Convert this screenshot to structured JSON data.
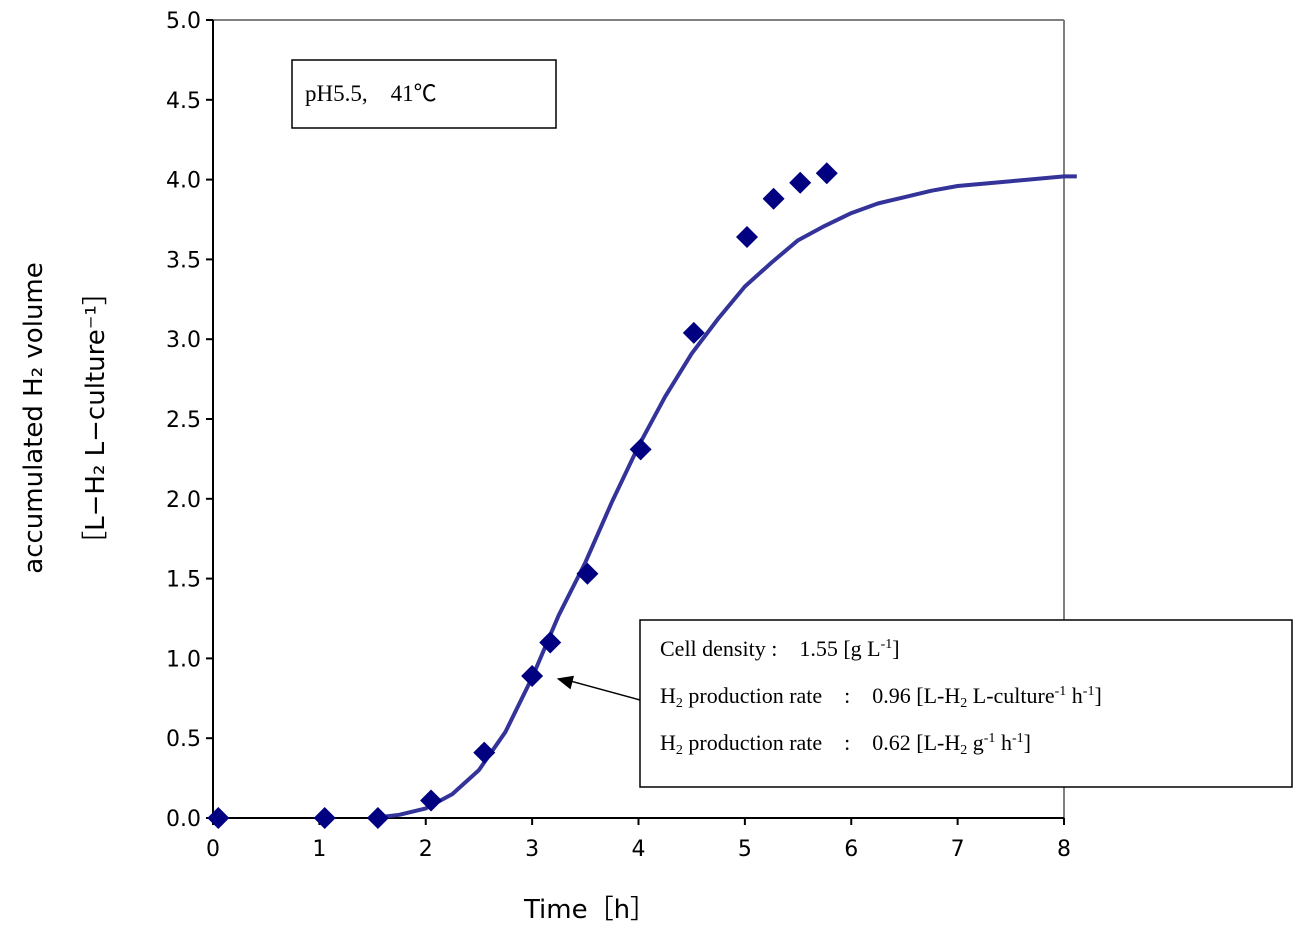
{
  "chart_data": {
    "type": "scatter",
    "xlabel": "Time［h］",
    "ylabel_line1": "accumulated H₂ volume",
    "ylabel_line2": "［L−H₂ L−culture⁻¹］",
    "xlim": [
      0,
      8
    ],
    "ylim": [
      0,
      5
    ],
    "x_ticks": [
      "0",
      "1",
      "2",
      "3",
      "4",
      "5",
      "6",
      "7",
      "8"
    ],
    "y_ticks": [
      "0.0",
      "0.5",
      "1.0",
      "1.5",
      "2.0",
      "2.5",
      "3.0",
      "3.5",
      "4.0",
      "4.5",
      "5.0"
    ],
    "grid": false,
    "series": [
      {
        "kind": "points",
        "marker": "diamond",
        "color": "#000080",
        "x": [
          0.05,
          1.05,
          1.55,
          2.05,
          2.55,
          3.0,
          3.17,
          3.52,
          4.02,
          4.52,
          5.02,
          5.27,
          5.52,
          5.77
        ],
        "y": [
          0.0,
          0.0,
          0.0,
          0.11,
          0.41,
          0.89,
          1.1,
          1.53,
          2.31,
          3.04,
          3.64,
          3.88,
          3.98,
          4.04
        ]
      },
      {
        "kind": "line",
        "color": "#333399",
        "x": [
          1.5,
          1.75,
          2.0,
          2.25,
          2.5,
          2.75,
          3.0,
          3.25,
          3.5,
          3.75,
          4.0,
          4.25,
          4.5,
          4.75,
          5.0,
          5.25,
          5.5,
          5.75,
          6.0,
          6.25,
          6.5,
          6.75,
          7.0,
          7.5,
          8.0,
          8.12
        ],
        "y": [
          0.0,
          0.02,
          0.06,
          0.15,
          0.3,
          0.54,
          0.88,
          1.27,
          1.6,
          1.98,
          2.33,
          2.64,
          2.91,
          3.13,
          3.33,
          3.48,
          3.62,
          3.71,
          3.79,
          3.85,
          3.89,
          3.93,
          3.96,
          3.99,
          4.02,
          4.02
        ]
      }
    ],
    "condition_label": "pH5.5,　41℃",
    "annotation": {
      "arrow_to": [
        3.1,
        0.88
      ],
      "lines": [
        {
          "pre": "",
          "sub1": "",
          "mid": "Cell density :　1.55 [g L",
          "sup1": "-1",
          "post": "]"
        },
        {
          "pre": "H",
          "sub1": "2",
          "mid": " production rate　:　0.96 [L-H",
          "sub2": "2",
          "mid2": " L-culture",
          "sup1": "-1",
          "mid3": " h",
          "sup2": "-1",
          "post": "]"
        },
        {
          "pre": "H",
          "sub1": "2",
          "mid": " production rate　:　0.62 [L-H",
          "sub2": "2",
          "mid2": " g",
          "sup1": "-1",
          "mid3": " h",
          "sup2": "-1",
          "post": "]"
        }
      ]
    }
  }
}
